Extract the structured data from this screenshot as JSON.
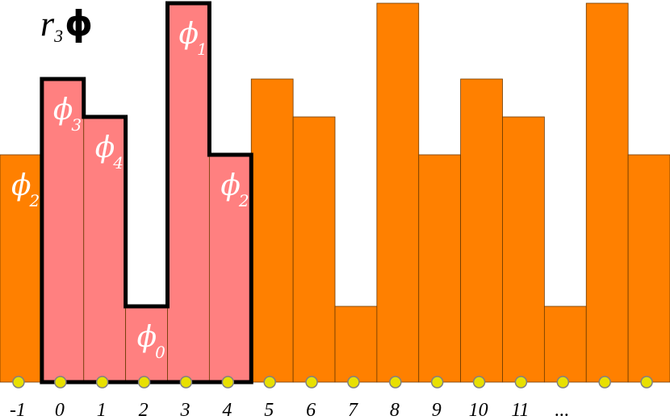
{
  "title": {
    "main": "r",
    "sub": "3",
    "symbol": "ϕ"
  },
  "colors": {
    "bar": "#ff8000",
    "highlight": "#ff8080",
    "outline": "#000000",
    "dot_fill": "#e8e000",
    "dot_stroke": "#808080"
  },
  "chart_data": {
    "type": "bar",
    "categories": [
      "-1",
      "0",
      "1",
      "2",
      "3",
      "4",
      "5",
      "6",
      "7",
      "8",
      "9",
      "10",
      "11",
      "...",
      "",
      ""
    ],
    "values": [
      3,
      4,
      3.5,
      1,
      5,
      3,
      4,
      3.5,
      1,
      5,
      3,
      4,
      3.5,
      1,
      5,
      3
    ],
    "highlighted_indices": [
      1,
      2,
      3,
      4,
      5
    ],
    "bar_labels": [
      {
        "index": 0,
        "base": "ϕ",
        "sub": "2"
      },
      {
        "index": 1,
        "base": "ϕ",
        "sub": "3"
      },
      {
        "index": 2,
        "base": "ϕ",
        "sub": "4"
      },
      {
        "index": 3,
        "base": "ϕ",
        "sub": "0"
      },
      {
        "index": 4,
        "base": "ϕ",
        "sub": "1"
      },
      {
        "index": 5,
        "base": "ϕ",
        "sub": "2"
      }
    ],
    "ylim": [
      0,
      5
    ]
  }
}
